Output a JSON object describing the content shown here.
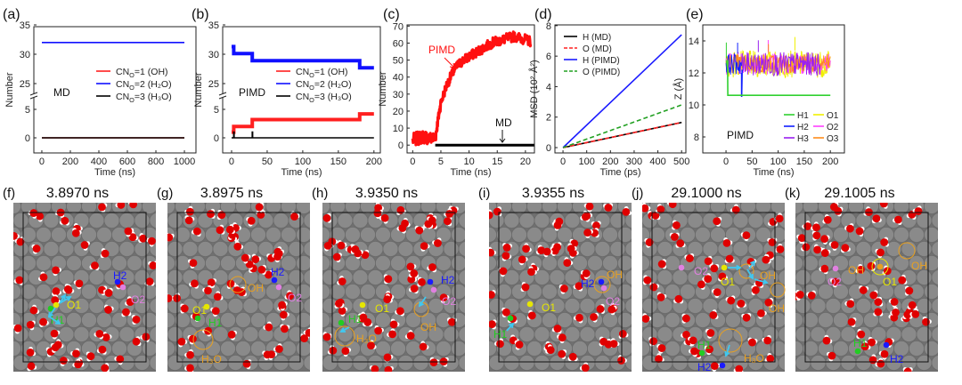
{
  "chart_data": [
    {
      "panel": "(a)",
      "type": "line",
      "annotation": "MD",
      "xlabel": "Time (ns)",
      "ylabel": "Number",
      "xlim": [
        -56,
        1081
      ],
      "ylim": [
        -2.6,
        35
      ],
      "y_break": [
        7,
        23
      ],
      "xticks": [
        0,
        200,
        400,
        600,
        800,
        1000
      ],
      "yticks": [
        0,
        5,
        25,
        30,
        35
      ],
      "series": [
        {
          "name": "CNO=1 (OH)",
          "color": "#ff2020",
          "points": [
            [
              0,
              0
            ],
            [
              1000,
              0
            ]
          ]
        },
        {
          "name": "CNO=2 (H₂O)",
          "color": "#1010ff",
          "points": [
            [
              0,
              32
            ],
            [
              1000,
              32
            ]
          ]
        },
        {
          "name": "CNO=3 (H₃O)",
          "color": "#000000",
          "points": [
            [
              0,
              0
            ],
            [
              1000,
              0
            ]
          ]
        }
      ]
    },
    {
      "panel": "(b)",
      "type": "line",
      "annotation": "PIMD",
      "xlabel": "Time (ns)",
      "ylabel": "Number",
      "xlim": [
        -12.5,
        209
      ],
      "ylim": [
        -2.6,
        35
      ],
      "y_break": [
        7,
        23
      ],
      "xticks": [
        0,
        50,
        100,
        150,
        200
      ],
      "yticks": [
        0,
        5,
        25,
        30,
        35
      ],
      "series": [
        {
          "name": "CNO=1 (OH)",
          "color": "#ff2020",
          "points": [
            [
              0,
              1
            ],
            [
              3,
              1
            ],
            [
              3,
              2
            ],
            [
              29,
              2
            ],
            [
              29,
              3.2
            ],
            [
              180,
              3.2
            ],
            [
              180,
              4.2
            ],
            [
              200,
              4.2
            ]
          ]
        },
        {
          "name": "CNO=2 (H₂O)",
          "color": "#1010ff",
          "points": [
            [
              0,
              31.3
            ],
            [
              3,
              31.3
            ],
            [
              3,
              30.1
            ],
            [
              29,
              30.1
            ],
            [
              29,
              28.9
            ],
            [
              180,
              28.9
            ],
            [
              180,
              27.7
            ],
            [
              200,
              27.7
            ]
          ]
        },
        {
          "name": "CNO=3 (H₃O)",
          "color": "#000000",
          "points": [
            [
              0,
              0
            ],
            [
              3,
              0
            ],
            [
              3,
              1
            ],
            [
              3.5,
              1
            ],
            [
              3.5,
              0
            ],
            [
              29,
              0
            ],
            [
              29,
              1
            ],
            [
              29.5,
              1
            ],
            [
              29.5,
              0
            ],
            [
              200,
              0
            ]
          ]
        }
      ]
    },
    {
      "panel": "(c)",
      "type": "line",
      "xlabel": "Time (ns)",
      "ylabel": "Number",
      "xlim": [
        -1,
        21.6
      ],
      "ylim": [
        -4.6,
        70.7
      ],
      "xticks": [
        0,
        5,
        10,
        15,
        20
      ],
      "yticks": [
        0,
        10,
        20,
        30,
        40,
        50,
        60,
        70
      ],
      "annotations": [
        "PIMD",
        "MD"
      ],
      "series": [
        {
          "name": "PIMD",
          "color": "#ff1010",
          "points": [
            [
              0,
              3
            ],
            [
              1,
              4
            ],
            [
              2,
              5
            ],
            [
              3,
              4
            ],
            [
              4,
              4
            ],
            [
              4.5,
              15
            ],
            [
              5,
              25
            ],
            [
              6,
              35
            ],
            [
              7,
              42
            ],
            [
              8,
              47
            ],
            [
              9,
              50
            ],
            [
              10,
              52
            ],
            [
              11,
              54
            ],
            [
              12,
              56
            ],
            [
              13,
              58
            ],
            [
              14,
              60
            ],
            [
              15,
              61
            ],
            [
              16,
              62
            ],
            [
              17,
              63
            ],
            [
              18,
              64
            ],
            [
              19,
              63
            ],
            [
              20,
              62
            ],
            [
              21,
              61
            ]
          ]
        },
        {
          "name": "MD",
          "color": "#000000",
          "points": [
            [
              4,
              0
            ],
            [
              21.6,
              0
            ]
          ]
        }
      ]
    },
    {
      "panel": "(d)",
      "type": "line",
      "xlabel": "Time (ps)",
      "ylabel": "MSD (10²·Å²)",
      "xlim": [
        -34,
        518
      ],
      "ylim": [
        -0.35,
        8.05
      ],
      "xticks": [
        0,
        100,
        200,
        300,
        400,
        500
      ],
      "yticks": [
        0,
        2,
        4,
        6,
        8
      ],
      "series": [
        {
          "name": "H (MD)",
          "color": "#000000",
          "dash": false,
          "points": [
            [
              0,
              0
            ],
            [
              500,
              1.65
            ]
          ]
        },
        {
          "name": "O (MD)",
          "color": "#ff2020",
          "dash": true,
          "points": [
            [
              0,
              0
            ],
            [
              500,
              1.65
            ]
          ]
        },
        {
          "name": "H (PIMD)",
          "color": "#1a1aff",
          "dash": false,
          "points": [
            [
              0,
              0
            ],
            [
              500,
              7.4
            ]
          ]
        },
        {
          "name": "O (PIMD)",
          "color": "#22a022",
          "dash": true,
          "points": [
            [
              0,
              0
            ],
            [
              500,
              2.8
            ]
          ]
        }
      ]
    },
    {
      "panel": "(e)",
      "type": "line",
      "annotation": "PIMD",
      "xlabel": "Time (ns)",
      "ylabel": "Z (Å)",
      "xlim": [
        -44.5,
        227
      ],
      "ylim": [
        7,
        15
      ],
      "xticks": [
        0,
        50,
        100,
        150,
        200
      ],
      "yticks": [
        8,
        10,
        12,
        14
      ],
      "series": [
        {
          "name": "O1",
          "color": "#f0f000",
          "band": [
            [
              0,
              200,
              11.7,
              13.4
            ]
          ]
        },
        {
          "name": "O2",
          "color": "#ff40ff",
          "band": [
            [
              0,
              200,
              11.9,
              13.3
            ]
          ]
        },
        {
          "name": "O3",
          "color": "#ff8c1a",
          "band": [
            [
              0,
              200,
              12.0,
              13.2
            ]
          ]
        },
        {
          "name": "H3",
          "color": "#9a20f0",
          "band": [
            [
              30,
              180,
              11.8,
              13.3
            ]
          ]
        },
        {
          "name": "H2",
          "color": "#1020ff",
          "band": [
            [
              0,
              30,
              11.9,
              13.2
            ]
          ],
          "points": [
            [
              30,
              12
            ],
            [
              30,
              10.5
            ],
            [
              31,
              12.2
            ]
          ]
        },
        {
          "name": "H1",
          "color": "#30d030",
          "band": [
            [
              0,
              3,
              11.8,
              12.9
            ]
          ],
          "points": [
            [
              3,
              12.8
            ],
            [
              3.5,
              10.6
            ],
            [
              200,
              10.6
            ]
          ]
        }
      ]
    }
  ],
  "snapshots": [
    {
      "label": "(f)",
      "time": "3.8970 ns",
      "atoms": [
        {
          "text": "H2",
          "kind": "H2"
        },
        {
          "text": "O2",
          "kind": "O2"
        },
        {
          "text": "O1",
          "kind": "O1"
        },
        {
          "text": "H1",
          "kind": "H1"
        }
      ]
    },
    {
      "label": "(g)",
      "time": "3.8975 ns",
      "atoms": [
        {
          "text": "OH",
          "kind": "OH"
        },
        {
          "text": "H2",
          "kind": "H2"
        },
        {
          "text": "O2",
          "kind": "O2"
        },
        {
          "text": "O1",
          "kind": "O1"
        },
        {
          "text": "H1",
          "kind": "H1"
        },
        {
          "text": "H₃O",
          "kind": "H3O"
        }
      ]
    },
    {
      "label": "(h)",
      "time": "3.9350 ns",
      "atoms": [
        {
          "text": "H2",
          "kind": "H2"
        },
        {
          "text": "O2",
          "kind": "O2"
        },
        {
          "text": "OH",
          "kind": "OH"
        },
        {
          "text": "O1",
          "kind": "O1"
        },
        {
          "text": "H1",
          "kind": "H1"
        },
        {
          "text": "H₃O",
          "kind": "H3O"
        }
      ]
    },
    {
      "label": "(i)",
      "time": "3.9355 ns",
      "atoms": [
        {
          "text": "H2",
          "kind": "H2"
        },
        {
          "text": "OH",
          "kind": "OH"
        },
        {
          "text": "O2",
          "kind": "O2"
        },
        {
          "text": "O1",
          "kind": "O1"
        },
        {
          "text": "H1",
          "kind": "H1"
        }
      ]
    },
    {
      "label": "(j)",
      "time": "29.1000 ns",
      "atoms": [
        {
          "text": "O2",
          "kind": "O2"
        },
        {
          "text": "O1",
          "kind": "O1"
        },
        {
          "text": "OH",
          "kind": "OH"
        },
        {
          "text": "OH",
          "kind": "OH"
        },
        {
          "text": "H₃O",
          "kind": "H3O"
        },
        {
          "text": "H1",
          "kind": "H1"
        },
        {
          "text": "H2",
          "kind": "H2"
        }
      ]
    },
    {
      "label": "(k)",
      "time": "29.1005 ns",
      "atoms": [
        {
          "text": "O2",
          "kind": "O2"
        },
        {
          "text": "O1",
          "kind": "O1"
        },
        {
          "text": "OH",
          "kind": "OH"
        },
        {
          "text": "OH",
          "kind": "OH"
        },
        {
          "text": "H1",
          "kind": "H1"
        },
        {
          "text": "H2",
          "kind": "H2"
        }
      ]
    }
  ],
  "colors": {
    "H1": "#22cc22",
    "H2": "#1a1aff",
    "O1": "#e6e600",
    "O2": "#e080e0",
    "OH": "#e8a020",
    "H3O": "#e8a020",
    "arrow": "#40c8f0",
    "oxygen": "#e00000",
    "hydrogen": "#ffffff",
    "substrate": "#808080"
  }
}
